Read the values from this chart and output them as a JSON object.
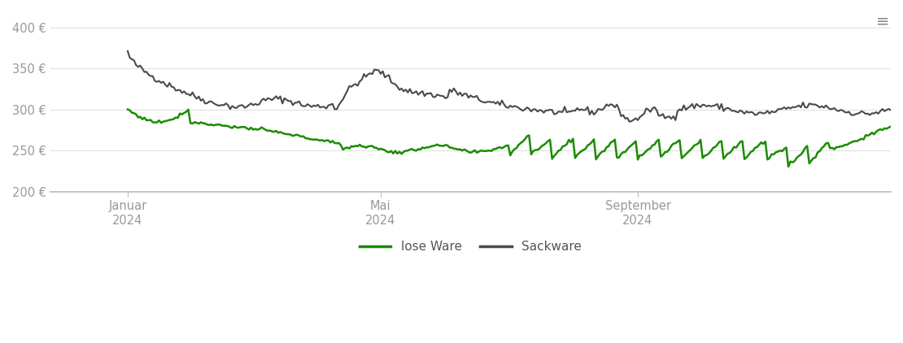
{
  "title": "",
  "ylim": [
    200,
    410
  ],
  "yticks": [
    200,
    250,
    300,
    350,
    400
  ],
  "ytick_labels": [
    "200 €",
    "250 €",
    "300 €",
    "350 €",
    "400 €"
  ],
  "line_color_lose": "#1a8c00",
  "line_color_sack": "#4a4a4a",
  "background_color": "#ffffff",
  "grid_color": "#e0e0e0",
  "legend_labels": [
    "lose Ware",
    "Sackware"
  ],
  "n_points": 366
}
